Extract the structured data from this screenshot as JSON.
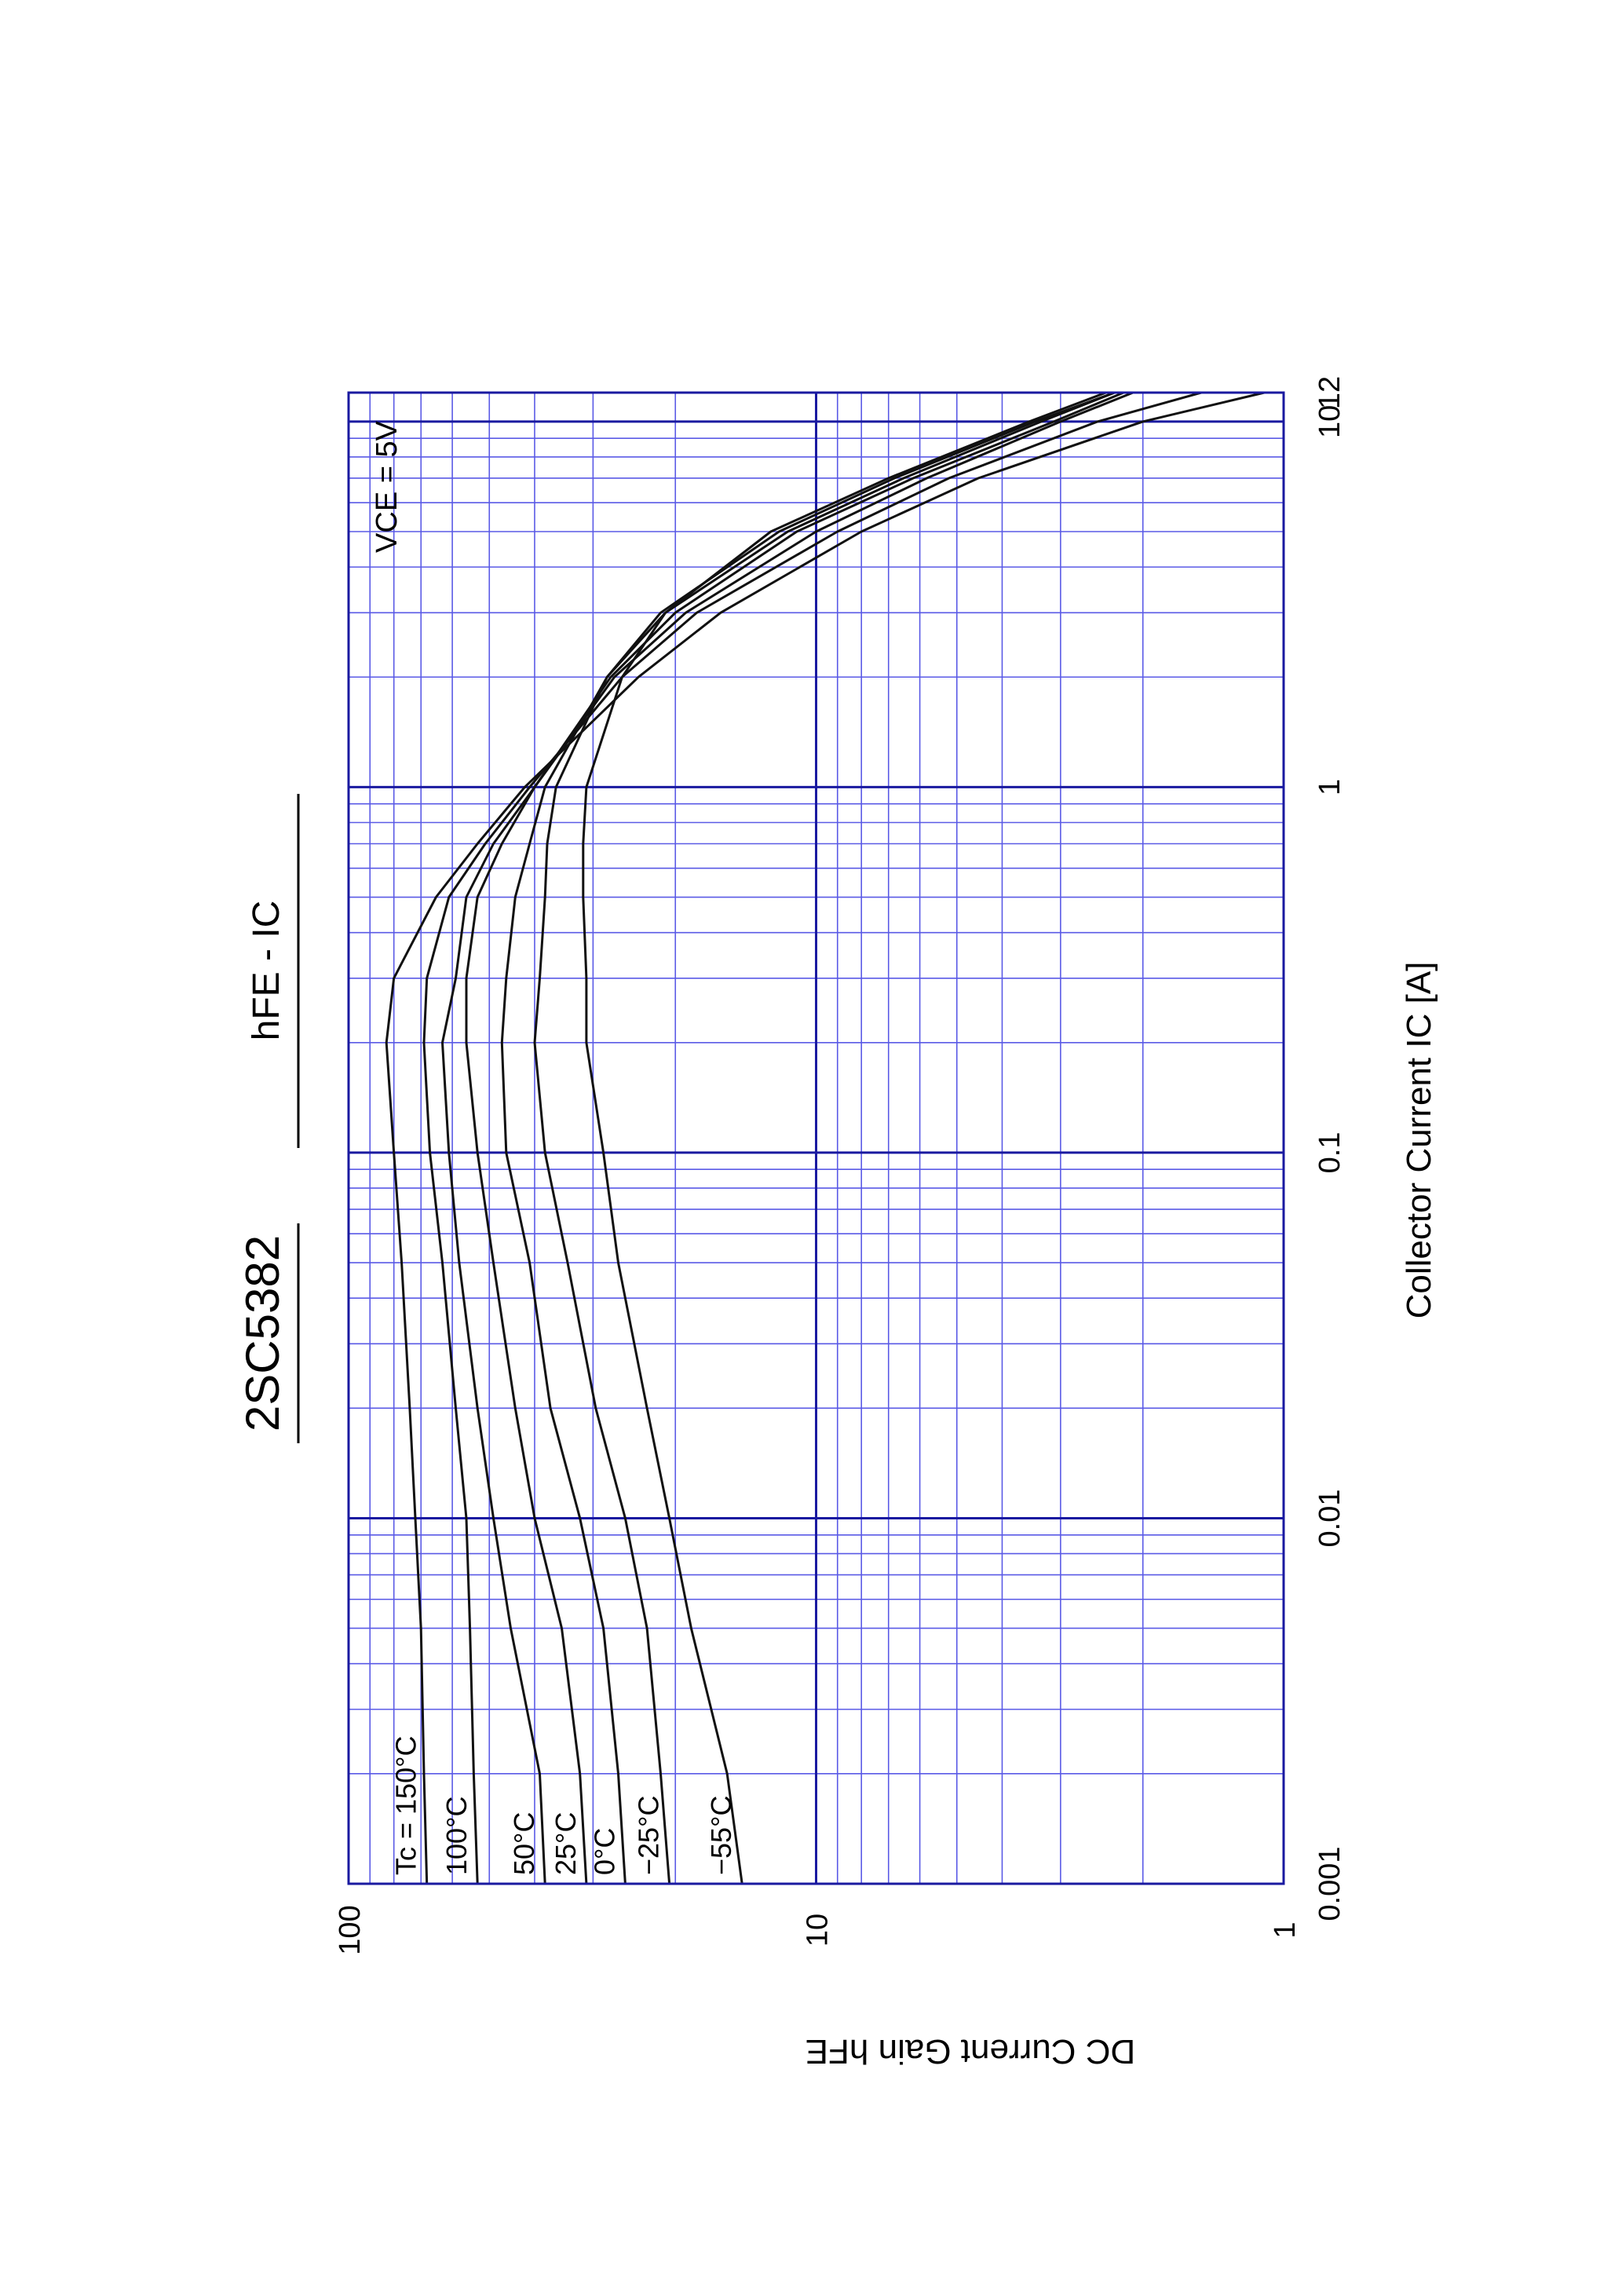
{
  "chart_data": {
    "type": "line",
    "title": "2SC5382",
    "subtitle": "hFE - IC",
    "x_label": "Collector Current  IC [A]",
    "y_label": "DC Current Gain  hFE",
    "annotation": "VCE = 5V",
    "x_log": true,
    "y_log": true,
    "grid": true,
    "minor_grid": true,
    "xlim": [
      0.001,
      12
    ],
    "xticks": [
      0.001,
      0.01,
      0.1,
      1,
      10,
      12
    ],
    "ylim": [
      1,
      100
    ],
    "yticks": [
      1,
      10,
      100
    ],
    "x": [
      0.001,
      0.002,
      0.005,
      0.01,
      0.02,
      0.05,
      0.1,
      0.2,
      0.3,
      0.5,
      0.7,
      1,
      2,
      3,
      5,
      7,
      10,
      12
    ],
    "series": [
      {
        "name": "Tc = 150°C",
        "color": "#111111",
        "values": [
          68,
          69,
          70,
          72,
          74,
          77,
          80,
          83,
          80,
          65,
          53,
          42,
          24,
          16,
          8,
          4.5,
          2.0,
          1.1
        ]
      },
      {
        "name": "100°C",
        "color": "#111111",
        "values": [
          53,
          54,
          55,
          56,
          59,
          63,
          67,
          69,
          68,
          61,
          51,
          41,
          26,
          18,
          9,
          5.2,
          2.5,
          1.5
        ]
      },
      {
        "name": "50°C",
        "color": "#111111",
        "values": [
          38,
          39,
          45,
          49,
          53,
          58,
          61,
          63,
          59,
          56,
          49,
          40,
          27,
          19,
          10,
          5.8,
          3.0,
          2.1
        ]
      },
      {
        "name": "25°C",
        "color": "#111111",
        "values": [
          31,
          32,
          35,
          40,
          44,
          49,
          53,
          56,
          56,
          53,
          47,
          40,
          27.5,
          20,
          11,
          6.2,
          3.1,
          2.2
        ]
      },
      {
        "name": "0°C",
        "color": "#111111",
        "values": [
          25.6,
          26.5,
          28.5,
          32,
          37,
          41,
          46,
          47,
          46,
          44,
          41,
          38,
          28,
          21,
          11.5,
          6.5,
          3.3,
          2.3
        ]
      },
      {
        "name": "−25°C",
        "color": "#111111",
        "values": [
          20.6,
          21.5,
          23,
          25.6,
          29.6,
          34,
          38,
          40,
          39,
          38,
          37.6,
          36,
          28,
          21.5,
          12,
          6.8,
          3.4,
          2.3
        ]
      },
      {
        "name": "−55°C",
        "color": "#111111",
        "values": [
          14.4,
          15.5,
          18.5,
          20.6,
          23,
          26.5,
          28.5,
          31,
          31,
          31.5,
          31.5,
          31,
          26,
          21,
          12.5,
          7,
          3.5,
          2.4
        ]
      }
    ]
  }
}
